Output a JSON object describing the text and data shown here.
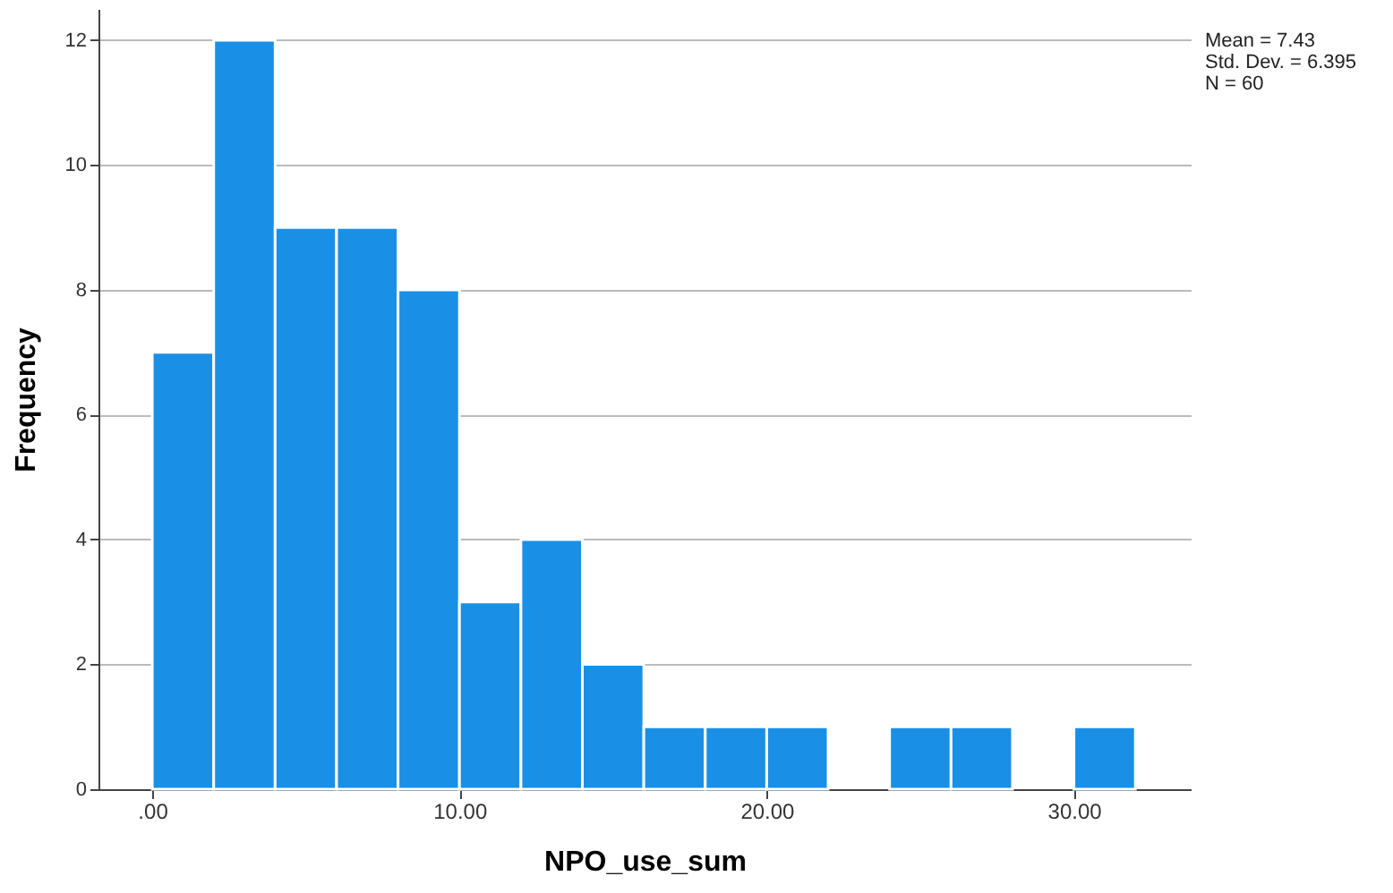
{
  "chart_data": {
    "type": "histogram",
    "xlabel": "NPO_use_sum",
    "ylabel": "Frequency",
    "bins": [
      0,
      2,
      4,
      6,
      8,
      10,
      12,
      14,
      16,
      18,
      20,
      22,
      24,
      26,
      28,
      30,
      32
    ],
    "values": [
      7,
      12,
      9,
      9,
      8,
      3,
      4,
      2,
      1,
      1,
      1,
      0,
      1,
      1,
      0,
      1
    ],
    "color": "#1a8fe6",
    "xlim": [
      -1.75,
      33.8
    ],
    "xticks": [
      {
        "value": 0,
        "label": ".00"
      },
      {
        "value": 10,
        "label": "10.00"
      },
      {
        "value": 20,
        "label": "20.00"
      },
      {
        "value": 30,
        "label": "30.00"
      }
    ],
    "ylim": [
      0,
      12.5
    ],
    "yticks": [
      0,
      2,
      4,
      6,
      8,
      10,
      12
    ],
    "grid": "y",
    "annotations": [
      "Mean = 7.43",
      "Std. Dev. = 6.395",
      "N = 60"
    ]
  }
}
